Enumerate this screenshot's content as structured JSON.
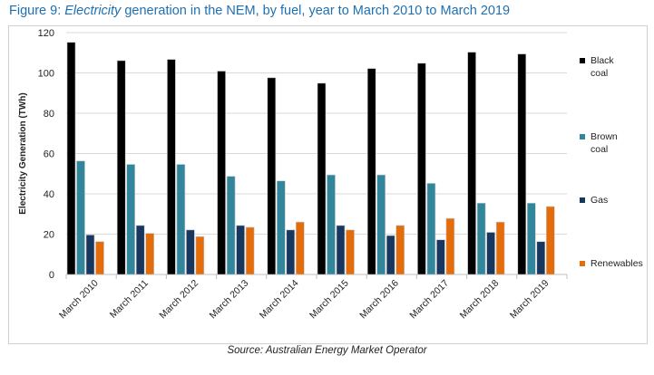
{
  "chart_data": {
    "type": "bar",
    "title_prefix": "Figure 9: ",
    "title_italic": "Electricity",
    "title_suffix": " generation in the NEM, by fuel, year to March 2010 to March 2019",
    "ylabel": "Electricity Generation (TWh)",
    "xlabel": "",
    "ylim": [
      0,
      120
    ],
    "yticks": [
      0,
      20,
      40,
      60,
      80,
      100,
      120
    ],
    "grid": true,
    "legend_position": "right",
    "categories": [
      "March 2010",
      "March 2011",
      "March 2012",
      "March 2013",
      "March 2014",
      "March 2015",
      "March 2016",
      "March 2017",
      "March 2018",
      "March 2019"
    ],
    "series": [
      {
        "name": "Black coal",
        "color": "#000000",
        "values": [
          115.2,
          106.1,
          106.7,
          100.9,
          97.6,
          94.9,
          102.2,
          104.8,
          110.3,
          109.4
        ]
      },
      {
        "name": "Brown coal",
        "color": "#31869b",
        "values": [
          56.3,
          54.6,
          54.6,
          48.7,
          46.4,
          49.4,
          49.4,
          45.2,
          35.4,
          35.4
        ]
      },
      {
        "name": "Gas",
        "color": "#17375e",
        "values": [
          19.6,
          24.3,
          22.1,
          24.3,
          22.1,
          24.3,
          19.3,
          17.2,
          20.9,
          16.3
        ]
      },
      {
        "name": "Renewables",
        "color": "#e46c0a",
        "values": [
          16.3,
          20.4,
          18.8,
          23.4,
          26.0,
          22.1,
          24.3,
          27.8,
          26.0,
          33.7
        ]
      }
    ],
    "source": "Source: Australian Energy Market Operator"
  }
}
